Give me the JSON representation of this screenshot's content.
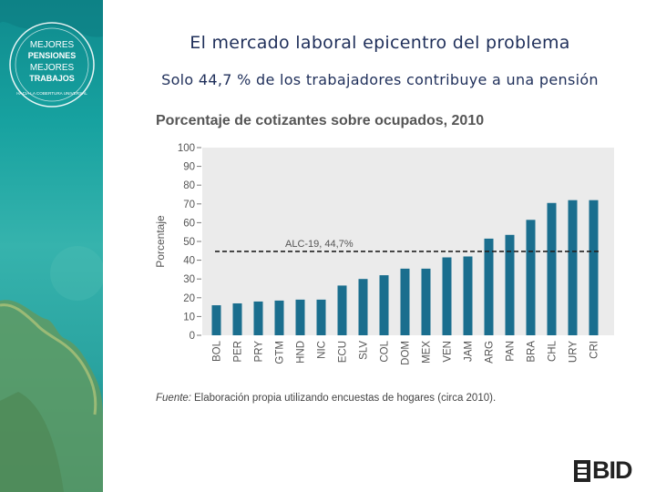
{
  "slide": {
    "title": "El mercado laboral epicentro del problema",
    "subtitle": "Solo 44,7 % de los trabajadores contribuye a una pensión"
  },
  "logo": {
    "line1": "MEJORES",
    "line2": "PENSIONES",
    "line3": "MEJORES",
    "line4": "TRABAJOS",
    "ring_text": "HACIA LA COBERTURA UNIVERSAL"
  },
  "brand": {
    "name": "BID"
  },
  "colors": {
    "bar": "#1a6e8e",
    "plot_bg": "#ebebeb",
    "title": "#1f2f5a",
    "sidebar": "#17a2a0"
  },
  "chart_data": {
    "type": "bar",
    "title": "Porcentaje de cotizantes sobre ocupados, 2010",
    "ylabel": "Porcentaje",
    "xlabel": "",
    "ylim": [
      0,
      100
    ],
    "yticks": [
      0,
      10,
      20,
      30,
      40,
      50,
      60,
      70,
      80,
      90,
      100
    ],
    "categories": [
      "BOL",
      "PER",
      "PRY",
      "GTM",
      "HND",
      "NIC",
      "ECU",
      "SLV",
      "COL",
      "DOM",
      "MEX",
      "VEN",
      "JAM",
      "ARG",
      "PAN",
      "BRA",
      "CHL",
      "URY",
      "CRI"
    ],
    "values": [
      16,
      17,
      18,
      18.5,
      19,
      19,
      26.5,
      30,
      32,
      35.5,
      35.5,
      41.5,
      42,
      51.5,
      53.5,
      61.5,
      70.5,
      72,
      72
    ],
    "reference_line": {
      "label": "ALC-19, 44,7%",
      "value": 44.7
    },
    "source_label": "Fuente:",
    "source_text": "Elaboración propia utilizando encuestas de hogares (circa 2010)."
  }
}
